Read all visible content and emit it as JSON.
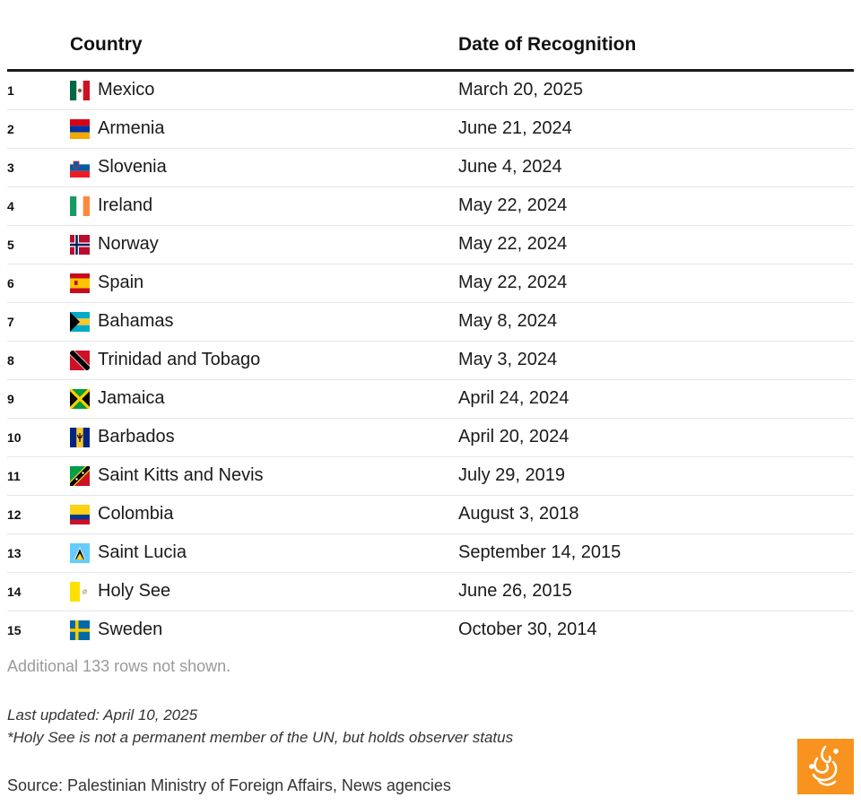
{
  "table": {
    "headers": {
      "country": "Country",
      "date": "Date of Recognition"
    },
    "rows": [
      {
        "rank": "1",
        "country": "Mexico",
        "date": "March 20, 2025",
        "flag": "mexico-flag-icon"
      },
      {
        "rank": "2",
        "country": "Armenia",
        "date": "June 21, 2024",
        "flag": "armenia-flag-icon"
      },
      {
        "rank": "3",
        "country": "Slovenia",
        "date": "June 4, 2024",
        "flag": "slovenia-flag-icon"
      },
      {
        "rank": "4",
        "country": "Ireland",
        "date": "May 22, 2024",
        "flag": "ireland-flag-icon"
      },
      {
        "rank": "5",
        "country": "Norway",
        "date": "May 22, 2024",
        "flag": "norway-flag-icon"
      },
      {
        "rank": "6",
        "country": "Spain",
        "date": "May 22, 2024",
        "flag": "spain-flag-icon"
      },
      {
        "rank": "7",
        "country": "Bahamas",
        "date": "May 8, 2024",
        "flag": "bahamas-flag-icon"
      },
      {
        "rank": "8",
        "country": "Trinidad and Tobago",
        "date": "May 3, 2024",
        "flag": "trinidad-flag-icon"
      },
      {
        "rank": "9",
        "country": "Jamaica",
        "date": "April 24, 2024",
        "flag": "jamaica-flag-icon"
      },
      {
        "rank": "10",
        "country": "Barbados",
        "date": "April 20, 2024",
        "flag": "barbados-flag-icon"
      },
      {
        "rank": "11",
        "country": "Saint Kitts and Nevis",
        "date": "July 29, 2019",
        "flag": "saint-kitts-flag-icon"
      },
      {
        "rank": "12",
        "country": "Colombia",
        "date": "August 3, 2018",
        "flag": "colombia-flag-icon"
      },
      {
        "rank": "13",
        "country": "Saint Lucia",
        "date": "September 14, 2015",
        "flag": "saint-lucia-flag-icon"
      },
      {
        "rank": "14",
        "country": "Holy See",
        "date": "June 26, 2015",
        "flag": "holy-see-flag-icon"
      },
      {
        "rank": "15",
        "country": "Sweden",
        "date": "October 30, 2014",
        "flag": "sweden-flag-icon"
      }
    ]
  },
  "chart_data": {
    "type": "table",
    "columns": [
      "",
      "Country",
      "Date of Recognition"
    ],
    "rows": [
      [
        "1",
        "Mexico",
        "March 20, 2025"
      ],
      [
        "2",
        "Armenia",
        "June 21, 2024"
      ],
      [
        "3",
        "Slovenia",
        "June 4, 2024"
      ],
      [
        "4",
        "Ireland",
        "May 22, 2024"
      ],
      [
        "5",
        "Norway",
        "May 22, 2024"
      ],
      [
        "6",
        "Spain",
        "May 22, 2024"
      ],
      [
        "7",
        "Bahamas",
        "May 8, 2024"
      ],
      [
        "8",
        "Trinidad and Tobago",
        "May 3, 2024"
      ],
      [
        "9",
        "Jamaica",
        "April 24, 2024"
      ],
      [
        "10",
        "Barbados",
        "April 20, 2024"
      ],
      [
        "11",
        "Saint Kitts and Nevis",
        "July 29, 2019"
      ],
      [
        "12",
        "Colombia",
        "August 3, 2018"
      ],
      [
        "13",
        "Saint Lucia",
        "September 14, 2015"
      ],
      [
        "14",
        "Holy See",
        "June 26, 2015"
      ],
      [
        "15",
        "Sweden",
        "October 30, 2014"
      ]
    ]
  },
  "footer": {
    "more_rows": "Additional 133 rows not shown.",
    "last_updated": "Last updated: April 10, 2025",
    "note": "*Holy See is not a permanent member of the UN, but holds observer status",
    "source": "Source: Palestinian Ministry of Foreign Affairs, News agencies",
    "logo": "al-jazeera-logo-icon"
  },
  "colors": {
    "header_rule": "#1a1a1a",
    "row_divider": "#e6e6e6",
    "muted_text": "#9a9a9a",
    "logo_bg": "#f7931e"
  }
}
